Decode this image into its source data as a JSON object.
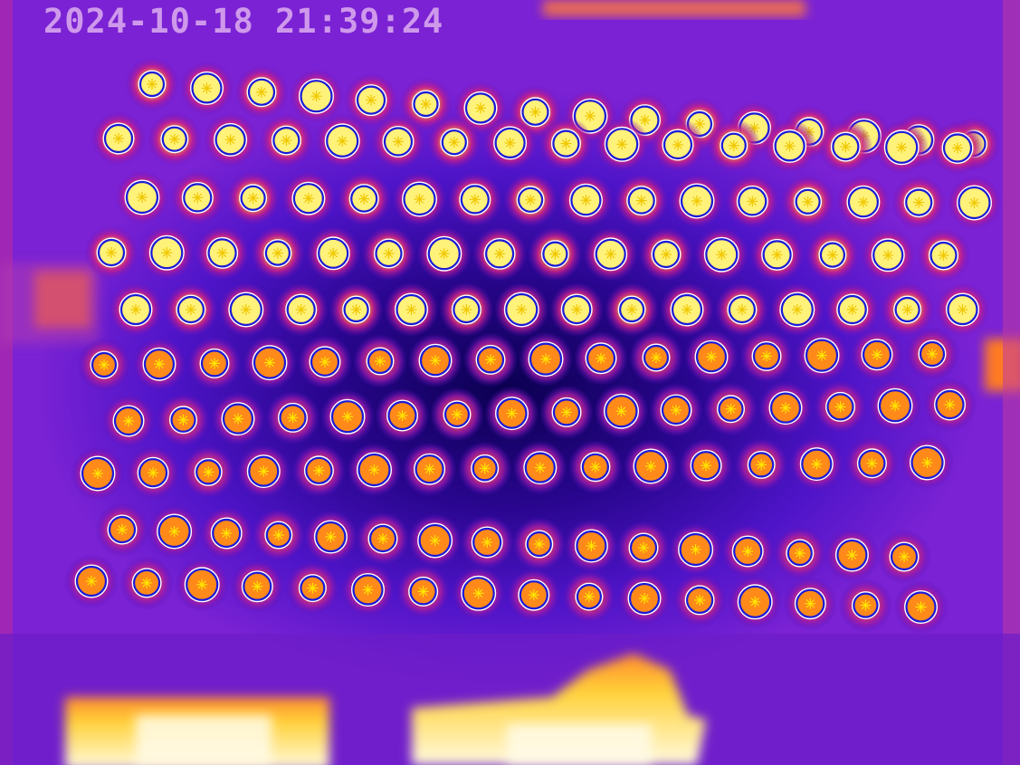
{
  "overlay": {
    "timestamp": "2024-10-18 21:39:24"
  },
  "palette": {
    "background": "#4e14c8",
    "background_dark": "#0b0050",
    "hot_core": "#fff27a",
    "warm_core": "#ff8a1a",
    "ring": "#1a1ad8",
    "marker": "#ffe600"
  },
  "grid": {
    "rows": 10,
    "columns": 16,
    "total_targets": 160
  }
}
